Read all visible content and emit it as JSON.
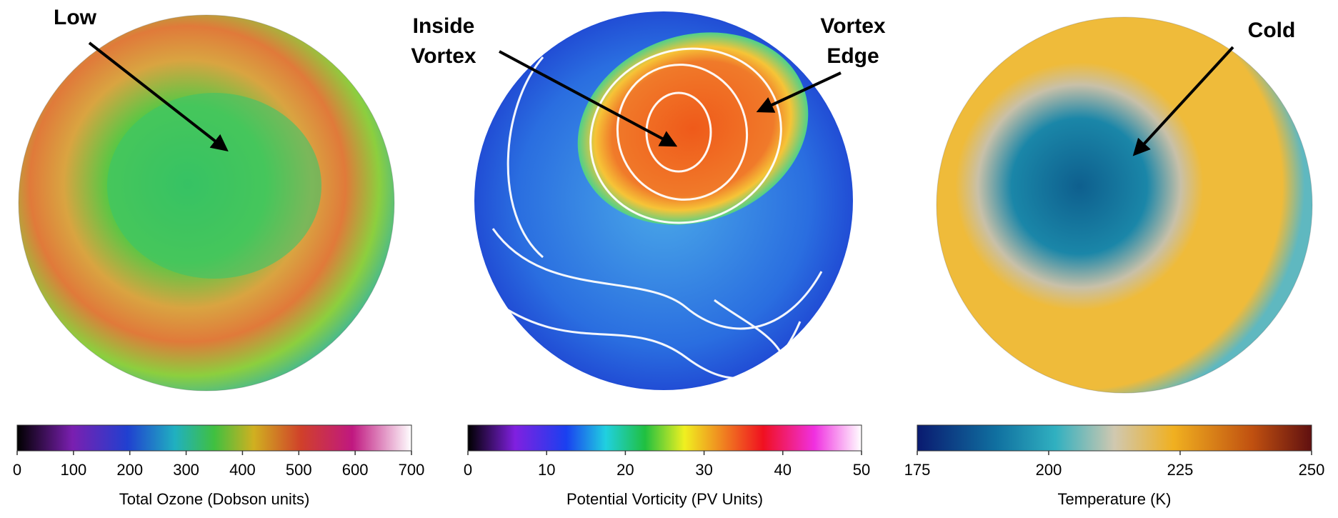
{
  "panels": [
    {
      "annotations": [
        [
          "Low"
        ]
      ],
      "colorbar": {
        "ticks": [
          0,
          100,
          200,
          300,
          400,
          500,
          600,
          700
        ],
        "label": "Total Ozone (Dobson units)"
      }
    },
    {
      "annotations": [
        [
          "Inside",
          "Vortex"
        ],
        [
          "Vortex",
          "Edge"
        ]
      ],
      "colorbar": {
        "ticks": [
          0,
          10,
          20,
          30,
          40,
          50
        ],
        "label": "Potential Vorticity (PV Units)"
      }
    },
    {
      "annotations": [
        [
          "Cold"
        ]
      ],
      "colorbar": {
        "ticks": [
          175,
          200,
          225,
          250
        ],
        "label": "Temperature (K)"
      }
    }
  ]
}
